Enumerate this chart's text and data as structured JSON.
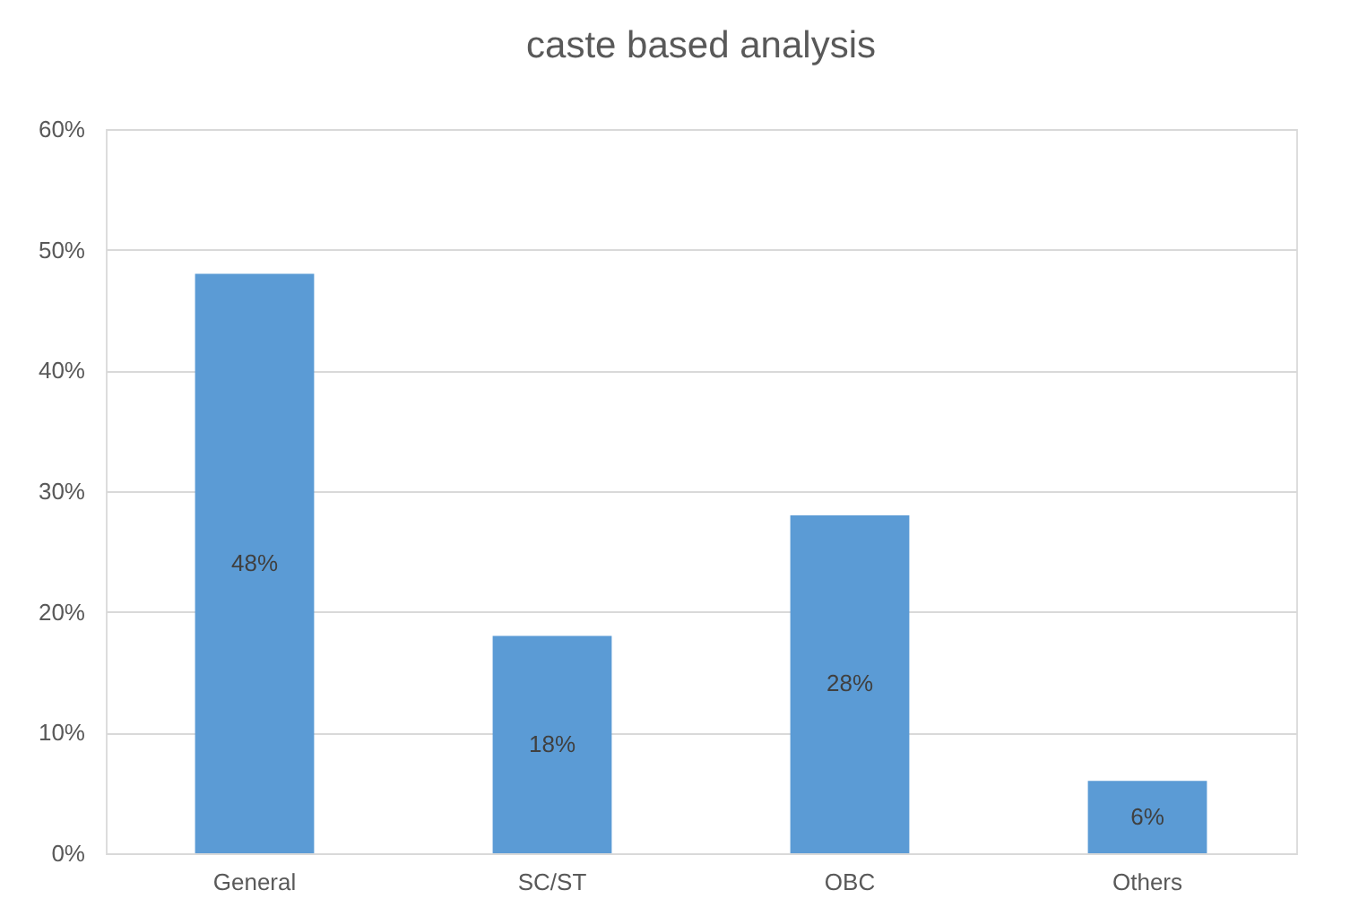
{
  "chart_data": {
    "type": "bar",
    "title": "caste based analysis",
    "categories": [
      "General",
      "SC/ST",
      "OBC",
      "Others"
    ],
    "values": [
      48,
      18,
      28,
      6
    ],
    "value_labels": [
      "48%",
      "18%",
      "28%",
      "6%"
    ],
    "color": "#5b9bd5",
    "ylim": [
      0,
      60
    ],
    "yticks": [
      {
        "value": 0,
        "label": "0%"
      },
      {
        "value": 10,
        "label": "10%"
      },
      {
        "value": 20,
        "label": "20%"
      },
      {
        "value": 30,
        "label": "30%"
      },
      {
        "value": 40,
        "label": "40%"
      },
      {
        "value": 50,
        "label": "50%"
      },
      {
        "value": 60,
        "label": "60%"
      }
    ],
    "grid": "y"
  }
}
